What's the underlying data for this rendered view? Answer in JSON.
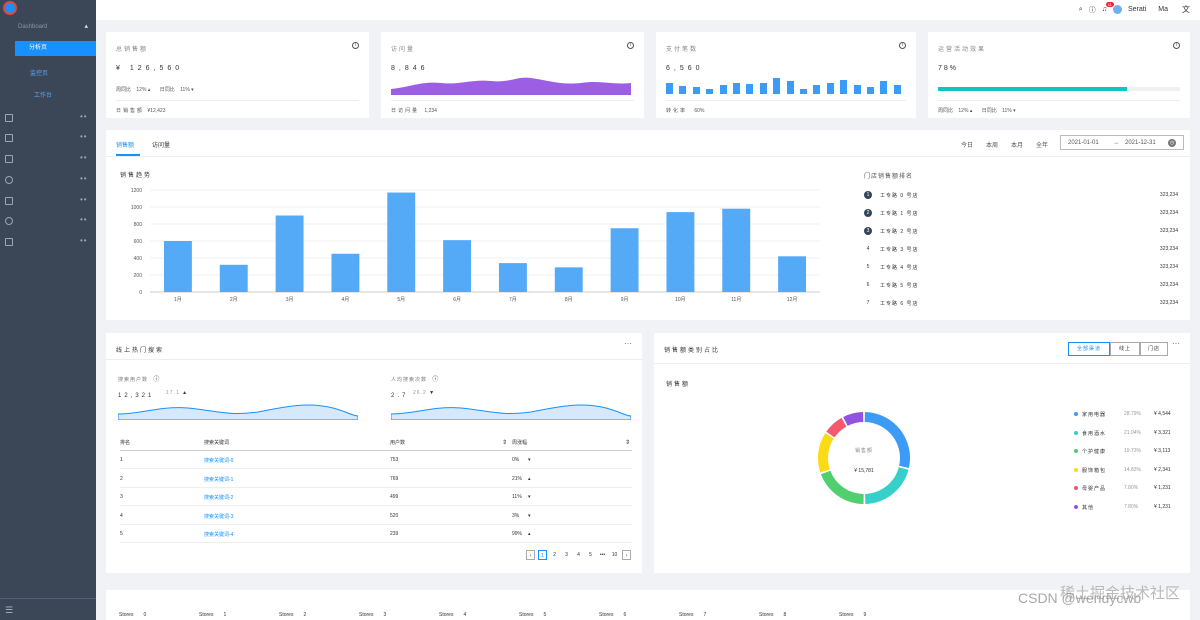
{
  "sidebar": {
    "top_label": "Dashboard",
    "selected": "分析页",
    "sub_items": [
      "监控页",
      "工作台"
    ]
  },
  "header": {
    "user": "Serati",
    "ma": "Ma",
    "notice_count": "11",
    "lang_icon": "translate-icon"
  },
  "kpis": [
    {
      "title": "总销售额",
      "value": "¥ 126,560",
      "week_label": "周同比",
      "week": "12%",
      "day_label": "日同比",
      "day": "11%",
      "foot_label": "日销售额",
      "foot": "¥12,423"
    },
    {
      "title": "访问量",
      "value": "8,846",
      "foot_label": "日访问量",
      "foot": "1,234"
    },
    {
      "title": "支付笔数",
      "value": "6,560",
      "foot_label": "转化率",
      "foot": "60%"
    },
    {
      "title": "运营活动效果",
      "value": "78%",
      "week_label": "周同比",
      "week": "12%",
      "day_label": "日同比",
      "day": "11%",
      "progress": 0.78
    }
  ],
  "sales": {
    "tabs": [
      "销售额",
      "访问量"
    ],
    "ranges": [
      "今日",
      "本周",
      "本月",
      "全年"
    ],
    "date_start": "2021-01-01",
    "date_end": "2021-12-31",
    "rank_title": "门店销售额排名",
    "rank": [
      {
        "no": "1",
        "name": "工专路 0 号店",
        "value": "323,234"
      },
      {
        "no": "2",
        "name": "工专路 1 号店",
        "value": "323,234"
      },
      {
        "no": "3",
        "name": "工专路 2 号店",
        "value": "323,234"
      },
      {
        "no": "4",
        "name": "工专路 3 号店",
        "value": "323,234"
      },
      {
        "no": "5",
        "name": "工专路 4 号店",
        "value": "323,234"
      },
      {
        "no": "6",
        "name": "工专路 5 号店",
        "value": "323,234"
      },
      {
        "no": "7",
        "name": "工专路 6 号店",
        "value": "323,234"
      }
    ]
  },
  "chart_data": {
    "type": "bar",
    "title": "销售趋势",
    "categories": [
      "1月",
      "2月",
      "3月",
      "4月",
      "5月",
      "6月",
      "7月",
      "8月",
      "9月",
      "10月",
      "11月",
      "12月"
    ],
    "values": [
      600,
      320,
      900,
      450,
      1170,
      610,
      340,
      290,
      750,
      940,
      980,
      420
    ],
    "yticks": [
      "0",
      "200",
      "400",
      "600",
      "800",
      "1000",
      "1200"
    ],
    "ylim": [
      0,
      1200
    ]
  },
  "search": {
    "title": "线上热门搜索",
    "users_label": "搜索用户数",
    "users_value": "12,321",
    "users_rate": "17.1",
    "avg_label": "人均搜索次数",
    "avg_value": "2.7",
    "avg_rate": "26.2",
    "columns": [
      "排名",
      "搜索关键词",
      "用户数",
      "周涨幅"
    ],
    "rows": [
      {
        "rank": "1",
        "keyword": "搜索关键词-0",
        "users": "753",
        "change": "0%"
      },
      {
        "rank": "2",
        "keyword": "搜索关键词-1",
        "users": "769",
        "change": "21%"
      },
      {
        "rank": "3",
        "keyword": "搜索关键词-2",
        "users": "499",
        "change": "11%"
      },
      {
        "rank": "4",
        "keyword": "搜索关键词-3",
        "users": "520",
        "change": "3%"
      },
      {
        "rank": "5",
        "keyword": "搜索关键词-4",
        "users": "239",
        "change": "99%"
      }
    ],
    "pages": [
      "1",
      "2",
      "3",
      "4",
      "5",
      "•••",
      "10"
    ]
  },
  "category": {
    "title": "销售额类别占比",
    "segments": [
      "全部渠道",
      "线上",
      "门店"
    ],
    "sub_title": "销售额",
    "center_label": "销售额",
    "center_value": "¥ 15,781",
    "legend": [
      {
        "name": "家用电器",
        "pct": "28.79%",
        "value": "¥ 4,544",
        "color": "#3b9bf6"
      },
      {
        "name": "食用酒水",
        "pct": "21.04%",
        "value": "¥ 3,321",
        "color": "#36cfc9"
      },
      {
        "name": "个护健康",
        "pct": "19.73%",
        "value": "¥ 3,113",
        "color": "#4fcf6e"
      },
      {
        "name": "服饰箱包",
        "pct": "14.83%",
        "value": "¥ 2,341",
        "color": "#fadb14"
      },
      {
        "name": "母婴产品",
        "pct": "7.80%",
        "value": "¥ 1,231",
        "color": "#f5586f"
      },
      {
        "name": "其他",
        "pct": "7.80%",
        "value": "¥ 1,231",
        "color": "#9254de"
      }
    ]
  },
  "stores": [
    "Stores",
    "Stores",
    "Stores",
    "Stores",
    "Stores",
    "Stores",
    "Stores",
    "Stores",
    "Stores",
    "Stores"
  ],
  "store_nums": [
    "0",
    "1",
    "2",
    "3",
    "4",
    "5",
    "6",
    "7",
    "8",
    "9"
  ],
  "watermark": {
    "line1": "稀土掘金技术社区",
    "line2": "CSDN @wendycwb"
  }
}
